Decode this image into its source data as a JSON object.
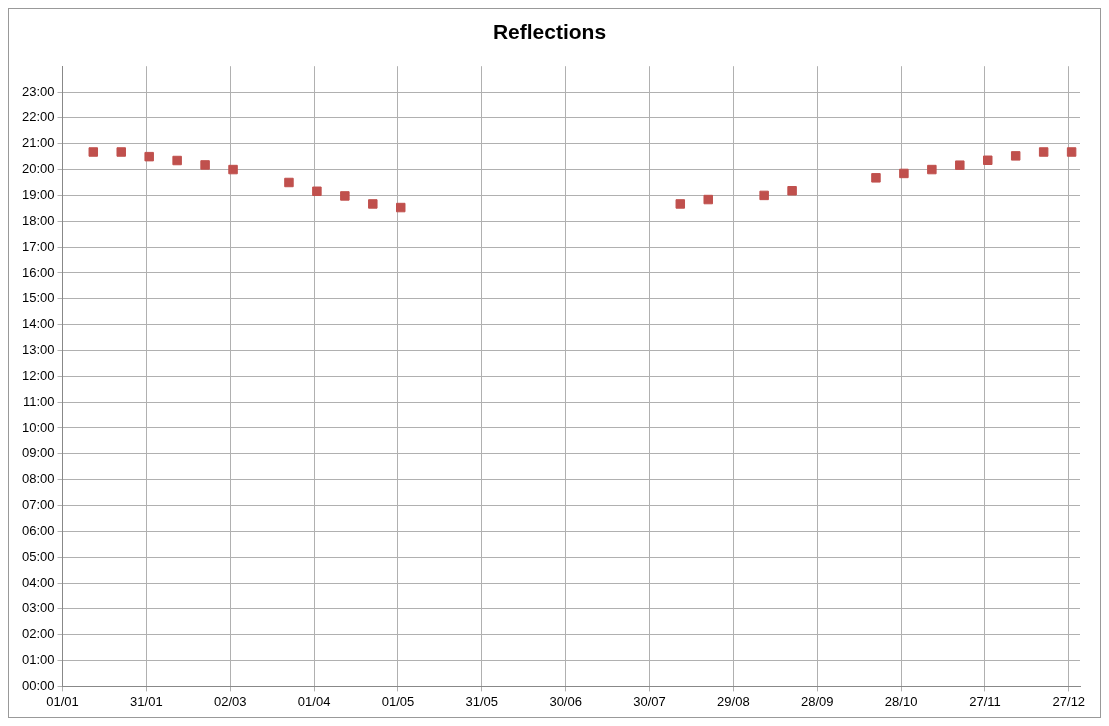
{
  "chart_data": {
    "type": "scatter",
    "title": "Reflections",
    "x": [
      "--01-12",
      "--01-22",
      "--02-01",
      "--02-11",
      "--02-21",
      "--03-03",
      "--03-23",
      "--04-02",
      "--04-12",
      "--04-22",
      "--05-02",
      "--08-10",
      "--08-20",
      "--09-09",
      "--09-19",
      "--10-19",
      "--10-29",
      "--11-08",
      "--11-18",
      "--11-28",
      "--12-08",
      "--12-18",
      "--12-28"
    ],
    "series": [
      {
        "color": "#c0504d",
        "values": [
          20.68,
          20.68,
          20.5,
          20.35,
          20.18,
          20.0,
          19.5,
          19.16,
          18.98,
          18.67,
          18.53,
          18.67,
          18.84,
          19.0,
          19.18,
          19.68,
          19.85,
          20.0,
          20.17,
          20.36,
          20.53,
          20.68,
          20.68
        ]
      }
    ],
    "xlim": [
      "--01-01",
      "--12-31"
    ],
    "xticks": [
      {
        "value": "--01-01",
        "label": "01/01"
      },
      {
        "value": "--01-31",
        "label": "31/01"
      },
      {
        "value": "--03-02",
        "label": "02/03"
      },
      {
        "value": "--04-01",
        "label": "01/04"
      },
      {
        "value": "--05-01",
        "label": "01/05"
      },
      {
        "value": "--05-31",
        "label": "31/05"
      },
      {
        "value": "--06-30",
        "label": "30/06"
      },
      {
        "value": "--07-30",
        "label": "30/07"
      },
      {
        "value": "--08-29",
        "label": "29/08"
      },
      {
        "value": "--09-28",
        "label": "28/09"
      },
      {
        "value": "--10-28",
        "label": "28/10"
      },
      {
        "value": "--11-27",
        "label": "27/11"
      },
      {
        "value": "--12-27",
        "label": "27/12"
      }
    ],
    "ylim": [
      0,
      24
    ],
    "yticks": [
      {
        "value": 0,
        "label": "00:00"
      },
      {
        "value": 1,
        "label": "01:00"
      },
      {
        "value": 2,
        "label": "02:00"
      },
      {
        "value": 3,
        "label": "03:00"
      },
      {
        "value": 4,
        "label": "04:00"
      },
      {
        "value": 5,
        "label": "05:00"
      },
      {
        "value": 6,
        "label": "06:00"
      },
      {
        "value": 7,
        "label": "07:00"
      },
      {
        "value": 8,
        "label": "08:00"
      },
      {
        "value": 9,
        "label": "09:00"
      },
      {
        "value": 10,
        "label": "10:00"
      },
      {
        "value": 11,
        "label": "11:00"
      },
      {
        "value": 12,
        "label": "12:00"
      },
      {
        "value": 13,
        "label": "13:00"
      },
      {
        "value": 14,
        "label": "14:00"
      },
      {
        "value": 15,
        "label": "15:00"
      },
      {
        "value": 16,
        "label": "16:00"
      },
      {
        "value": 17,
        "label": "17:00"
      },
      {
        "value": 18,
        "label": "18:00"
      },
      {
        "value": 19,
        "label": "19:00"
      },
      {
        "value": 20,
        "label": "20:00"
      },
      {
        "value": 21,
        "label": "21:00"
      },
      {
        "value": 22,
        "label": "22:00"
      },
      {
        "value": 23,
        "label": "23:00"
      }
    ],
    "grid": true,
    "marker": "square",
    "legend": false
  }
}
